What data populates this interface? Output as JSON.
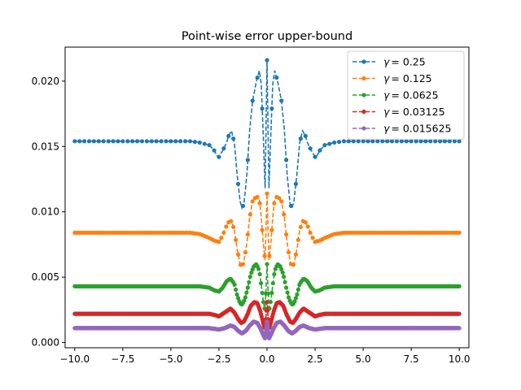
{
  "chart_data": {
    "type": "line",
    "title": "Point-wise error upper-bound",
    "xlabel": "",
    "ylabel": "",
    "xlim": [
      -10.5,
      10.5
    ],
    "ylim": [
      -0.0004,
      0.0226
    ],
    "xticks": [
      -10,
      -7.5,
      -5,
      -2.5,
      0,
      2.5,
      5,
      7.5,
      10
    ],
    "xtick_labels": [
      "−10.0",
      "−7.5",
      "−5.0",
      "−2.5",
      "0.0",
      "2.5",
      "5.0",
      "7.5",
      "10.0"
    ],
    "yticks": [
      0,
      0.005,
      0.01,
      0.015,
      0.02
    ],
    "ytick_labels": [
      "0.000",
      "0.005",
      "0.010",
      "0.015",
      "0.020"
    ],
    "grid": false,
    "legend_position": "top-right",
    "x_range": [
      -10,
      10
    ],
    "series": [
      {
        "name": "γ = 0.25",
        "label_prefix": "γ",
        "label_value": "= 0.25",
        "color": "#1f77b4",
        "baseline": 0.0154,
        "points": [
          [
            -10,
            0.0154
          ],
          [
            -4,
            0.0154
          ],
          [
            -3.5,
            0.0153
          ],
          [
            -3,
            0.0151
          ],
          [
            -2.75,
            0.0147
          ],
          [
            -2.6,
            0.0143
          ],
          [
            -2.5,
            0.0142
          ],
          [
            -2.3,
            0.0147
          ],
          [
            -2.1,
            0.0153
          ],
          [
            -2.0,
            0.0158
          ],
          [
            -1.85,
            0.0162
          ],
          [
            -1.7,
            0.0153
          ],
          [
            -1.55,
            0.0128
          ],
          [
            -1.4,
            0.0108
          ],
          [
            -1.3,
            0.0103
          ],
          [
            -1.2,
            0.0106
          ],
          [
            -1.05,
            0.0128
          ],
          [
            -0.9,
            0.0163
          ],
          [
            -0.75,
            0.0185
          ],
          [
            -0.55,
            0.02
          ],
          [
            -0.4,
            0.0208
          ],
          [
            -0.3,
            0.0198
          ],
          [
            -0.2,
            0.016
          ],
          [
            -0.1,
            0.0118
          ],
          [
            0,
            0.0216
          ],
          [
            0.1,
            0.0118
          ],
          [
            0.2,
            0.016
          ],
          [
            0.3,
            0.0198
          ],
          [
            0.4,
            0.0208
          ],
          [
            0.55,
            0.02
          ],
          [
            0.75,
            0.0185
          ],
          [
            0.9,
            0.0163
          ],
          [
            1.05,
            0.0128
          ],
          [
            1.2,
            0.0106
          ],
          [
            1.3,
            0.0103
          ],
          [
            1.4,
            0.0108
          ],
          [
            1.55,
            0.0128
          ],
          [
            1.7,
            0.0153
          ],
          [
            1.85,
            0.0162
          ],
          [
            2.0,
            0.0158
          ],
          [
            2.1,
            0.0153
          ],
          [
            2.3,
            0.0147
          ],
          [
            2.5,
            0.0142
          ],
          [
            2.6,
            0.0143
          ],
          [
            2.75,
            0.0147
          ],
          [
            3,
            0.0151
          ],
          [
            3.5,
            0.0153
          ],
          [
            4,
            0.0154
          ],
          [
            10,
            0.0154
          ]
        ]
      },
      {
        "name": "γ = 0.125",
        "label_prefix": "γ",
        "label_value": "= 0.125",
        "color": "#ff7f0e",
        "baseline": 0.0084,
        "points": [
          [
            -10,
            0.0084
          ],
          [
            -4,
            0.0084
          ],
          [
            -3.5,
            0.0083
          ],
          [
            -3,
            0.008
          ],
          [
            -2.75,
            0.0078
          ],
          [
            -2.5,
            0.0077
          ],
          [
            -2.3,
            0.0082
          ],
          [
            -2.15,
            0.0088
          ],
          [
            -2.0,
            0.0092
          ],
          [
            -1.85,
            0.0093
          ],
          [
            -1.7,
            0.0086
          ],
          [
            -1.55,
            0.0071
          ],
          [
            -1.4,
            0.006
          ],
          [
            -1.3,
            0.0058
          ],
          [
            -1.2,
            0.0062
          ],
          [
            -1.05,
            0.0076
          ],
          [
            -0.9,
            0.0096
          ],
          [
            -0.75,
            0.0108
          ],
          [
            -0.55,
            0.0112
          ],
          [
            -0.4,
            0.011
          ],
          [
            -0.3,
            0.0096
          ],
          [
            -0.2,
            0.0076
          ],
          [
            -0.1,
            0.0063
          ],
          [
            0,
            0.0114
          ],
          [
            0.1,
            0.0063
          ],
          [
            0.2,
            0.0076
          ],
          [
            0.3,
            0.0096
          ],
          [
            0.4,
            0.011
          ],
          [
            0.55,
            0.0112
          ],
          [
            0.75,
            0.0108
          ],
          [
            0.9,
            0.0096
          ],
          [
            1.05,
            0.0076
          ],
          [
            1.2,
            0.0062
          ],
          [
            1.3,
            0.0058
          ],
          [
            1.4,
            0.006
          ],
          [
            1.55,
            0.0071
          ],
          [
            1.7,
            0.0086
          ],
          [
            1.85,
            0.0093
          ],
          [
            2.0,
            0.0092
          ],
          [
            2.15,
            0.0088
          ],
          [
            2.3,
            0.0082
          ],
          [
            2.5,
            0.0077
          ],
          [
            2.75,
            0.0078
          ],
          [
            3,
            0.008
          ],
          [
            3.5,
            0.0083
          ],
          [
            4,
            0.0084
          ],
          [
            10,
            0.0084
          ]
        ]
      },
      {
        "name": "γ = 0.0625",
        "label_prefix": "γ",
        "label_value": "= 0.0625",
        "color": "#2ca02c",
        "baseline": 0.0043,
        "points": [
          [
            -10,
            0.0043
          ],
          [
            -4,
            0.0043
          ],
          [
            -3.5,
            0.0043
          ],
          [
            -3,
            0.0042
          ],
          [
            -2.75,
            0.004
          ],
          [
            -2.5,
            0.0039
          ],
          [
            -2.3,
            0.0042
          ],
          [
            -2.1,
            0.0047
          ],
          [
            -1.9,
            0.0049
          ],
          [
            -1.7,
            0.0045
          ],
          [
            -1.55,
            0.0036
          ],
          [
            -1.4,
            0.003
          ],
          [
            -1.3,
            0.0029
          ],
          [
            -1.15,
            0.0033
          ],
          [
            -1.0,
            0.0042
          ],
          [
            -0.85,
            0.0052
          ],
          [
            -0.7,
            0.0058
          ],
          [
            -0.55,
            0.006
          ],
          [
            -0.4,
            0.0055
          ],
          [
            -0.3,
            0.0044
          ],
          [
            -0.2,
            0.0032
          ],
          [
            -0.1,
            0.0024
          ],
          [
            0,
            0.006
          ],
          [
            0.1,
            0.0024
          ],
          [
            0.2,
            0.0032
          ],
          [
            0.3,
            0.0044
          ],
          [
            0.4,
            0.0055
          ],
          [
            0.55,
            0.006
          ],
          [
            0.7,
            0.0058
          ],
          [
            0.85,
            0.0052
          ],
          [
            1.0,
            0.0042
          ],
          [
            1.15,
            0.0033
          ],
          [
            1.3,
            0.0029
          ],
          [
            1.4,
            0.003
          ],
          [
            1.55,
            0.0036
          ],
          [
            1.7,
            0.0045
          ],
          [
            1.9,
            0.0049
          ],
          [
            2.1,
            0.0047
          ],
          [
            2.3,
            0.0042
          ],
          [
            2.5,
            0.0039
          ],
          [
            2.75,
            0.004
          ],
          [
            3,
            0.0042
          ],
          [
            3.5,
            0.0043
          ],
          [
            4,
            0.0043
          ],
          [
            10,
            0.0043
          ]
        ]
      },
      {
        "name": "γ = 0.03125",
        "label_prefix": "γ",
        "label_value": "= 0.03125",
        "color": "#d62728",
        "baseline": 0.0022,
        "points": [
          [
            -10,
            0.0022
          ],
          [
            -3,
            0.0022
          ],
          [
            -2.7,
            0.0021
          ],
          [
            -2.5,
            0.002
          ],
          [
            -2.3,
            0.0022
          ],
          [
            -2.1,
            0.0024
          ],
          [
            -1.9,
            0.0026
          ],
          [
            -1.7,
            0.0023
          ],
          [
            -1.5,
            0.0018
          ],
          [
            -1.35,
            0.0015
          ],
          [
            -1.2,
            0.0016
          ],
          [
            -1.0,
            0.0022
          ],
          [
            -0.85,
            0.0028
          ],
          [
            -0.65,
            0.0031
          ],
          [
            -0.5,
            0.003
          ],
          [
            -0.35,
            0.0024
          ],
          [
            -0.2,
            0.0015
          ],
          [
            -0.1,
            0.001
          ],
          [
            0,
            0.0031
          ],
          [
            0.1,
            0.001
          ],
          [
            0.2,
            0.0015
          ],
          [
            0.35,
            0.0024
          ],
          [
            0.5,
            0.003
          ],
          [
            0.65,
            0.0031
          ],
          [
            0.85,
            0.0028
          ],
          [
            1.0,
            0.0022
          ],
          [
            1.2,
            0.0016
          ],
          [
            1.35,
            0.0015
          ],
          [
            1.5,
            0.0018
          ],
          [
            1.7,
            0.0023
          ],
          [
            1.9,
            0.0026
          ],
          [
            2.1,
            0.0024
          ],
          [
            2.3,
            0.0022
          ],
          [
            2.5,
            0.002
          ],
          [
            2.7,
            0.0021
          ],
          [
            3,
            0.0022
          ],
          [
            10,
            0.0022
          ]
        ]
      },
      {
        "name": "γ = 0.015625",
        "label_prefix": "γ",
        "label_value": "= 0.015625",
        "color": "#9467bd",
        "baseline": 0.0011,
        "points": [
          [
            -10,
            0.0011
          ],
          [
            -3,
            0.0011
          ],
          [
            -2.5,
            0.001
          ],
          [
            -2.2,
            0.0011
          ],
          [
            -1.9,
            0.0013
          ],
          [
            -1.7,
            0.0012
          ],
          [
            -1.5,
            0.0009
          ],
          [
            -1.3,
            0.0007
          ],
          [
            -1.1,
            0.0009
          ],
          [
            -0.9,
            0.0013
          ],
          [
            -0.7,
            0.0016
          ],
          [
            -0.5,
            0.0015
          ],
          [
            -0.35,
            0.0011
          ],
          [
            -0.2,
            0.0006
          ],
          [
            -0.1,
            0.0003
          ],
          [
            0,
            0.0016
          ],
          [
            0.1,
            0.0003
          ],
          [
            0.2,
            0.0006
          ],
          [
            0.35,
            0.0011
          ],
          [
            0.5,
            0.0015
          ],
          [
            0.7,
            0.0016
          ],
          [
            0.9,
            0.0013
          ],
          [
            1.1,
            0.0009
          ],
          [
            1.3,
            0.0007
          ],
          [
            1.5,
            0.0009
          ],
          [
            1.7,
            0.0012
          ],
          [
            1.9,
            0.0013
          ],
          [
            2.2,
            0.0011
          ],
          [
            2.5,
            0.001
          ],
          [
            3,
            0.0011
          ],
          [
            10,
            0.0011
          ]
        ]
      }
    ]
  }
}
